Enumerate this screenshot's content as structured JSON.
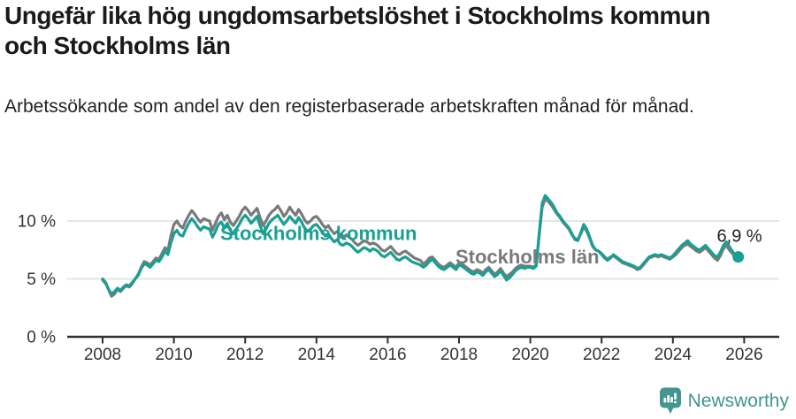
{
  "header": {
    "title": "Ungefär lika hög ungdomsarbetslöshet i Stockholms kommun och Stockholms län",
    "subtitle": "Arbetssökande som andel av den registerbaserade arbetskraften månad för månad."
  },
  "colors": {
    "kommun": "#18a092",
    "lan": "#7a7a7a",
    "axis": "#2f2f2f",
    "grid": "#dedede",
    "tick_text": "#333333",
    "value_text": "#222222",
    "logo": "#42968f"
  },
  "footer": {
    "brand": "Newsworthy",
    "logo_icon": "speech-bubble-bar-chart"
  },
  "chart_data": {
    "type": "line",
    "unit": "%",
    "frequency": "monthly",
    "start_month": "2008-01",
    "end_month": "2025-11",
    "ylim": [
      0,
      13
    ],
    "grid": "horizontal",
    "legend_position": "inline-labels",
    "yticks": [
      {
        "value": 0,
        "label": "0 %"
      },
      {
        "value": 5,
        "label": "5 %"
      },
      {
        "value": 10,
        "label": "10 %"
      }
    ],
    "xticks": [
      "2008",
      "2010",
      "2012",
      "2014",
      "2016",
      "2018",
      "2020",
      "2022",
      "2024",
      "2026"
    ],
    "series": [
      {
        "name": "Stockholms kommun",
        "color_key": "kommun",
        "values": [
          4.9,
          4.6,
          4.1,
          3.7,
          3.9,
          4.2,
          4.0,
          4.3,
          4.5,
          4.4,
          4.7,
          5.0,
          5.3,
          5.9,
          6.3,
          6.2,
          6.0,
          6.3,
          6.6,
          6.5,
          6.9,
          7.4,
          7.1,
          8.1,
          8.9,
          9.2,
          8.8,
          8.7,
          9.3,
          9.8,
          10.2,
          9.9,
          9.5,
          9.2,
          9.5,
          9.4,
          9.3,
          8.6,
          9.1,
          9.7,
          9.9,
          9.4,
          9.8,
          9.2,
          8.9,
          9.3,
          9.7,
          10.2,
          10.5,
          10.2,
          9.8,
          10.1,
          10.4,
          9.6,
          8.9,
          9.3,
          9.8,
          10.1,
          10.3,
          10.5,
          10.1,
          9.7,
          10.0,
          10.4,
          10.1,
          9.8,
          10.3,
          9.9,
          9.4,
          9.1,
          9.3,
          9.6,
          9.7,
          9.4,
          9.0,
          8.7,
          8.9,
          8.5,
          8.2,
          8.4,
          8.0,
          7.9,
          8.1,
          8.0,
          7.8,
          7.5,
          7.3,
          7.5,
          7.7,
          7.6,
          7.4,
          7.6,
          7.5,
          7.3,
          7.0,
          6.9,
          7.1,
          7.3,
          7.0,
          6.7,
          6.6,
          6.8,
          6.9,
          6.7,
          6.5,
          6.4,
          6.3,
          6.2,
          6.0,
          6.2,
          6.5,
          6.7,
          6.4,
          6.1,
          5.9,
          5.8,
          6.0,
          6.2,
          6.0,
          5.8,
          6.2,
          6.1,
          5.9,
          5.7,
          5.5,
          5.4,
          5.6,
          5.5,
          5.3,
          5.6,
          5.8,
          5.5,
          5.2,
          5.4,
          5.7,
          5.3,
          4.9,
          5.1,
          5.4,
          5.7,
          5.9,
          6.0,
          5.9,
          6.0,
          6.0,
          5.9,
          6.1,
          9.0,
          11.5,
          12.2,
          11.9,
          11.6,
          11.2,
          10.7,
          10.4,
          10.0,
          9.7,
          9.4,
          8.9,
          8.4,
          8.3,
          9.0,
          9.7,
          9.3,
          8.6,
          7.9,
          7.5,
          7.4,
          7.1,
          6.8,
          6.6,
          6.8,
          7.1,
          6.9,
          6.7,
          6.5,
          6.4,
          6.3,
          6.2,
          6.1,
          5.9,
          6.0,
          6.3,
          6.6,
          6.9,
          7.0,
          7.1,
          7.0,
          7.1,
          7.0,
          6.9,
          6.8,
          7.0,
          7.3,
          7.6,
          7.9,
          8.1,
          8.3,
          8.0,
          7.8,
          7.6,
          7.5,
          7.7,
          7.9,
          7.6,
          7.3,
          7.0,
          6.9,
          7.3,
          7.9,
          8.2,
          7.8,
          7.4,
          7.0,
          6.9
        ]
      },
      {
        "name": "Stockholms län",
        "color_key": "lan",
        "values": [
          5.0,
          4.7,
          4.1,
          3.5,
          3.7,
          4.1,
          3.9,
          4.2,
          4.4,
          4.3,
          4.6,
          5.0,
          5.4,
          6.0,
          6.5,
          6.4,
          6.2,
          6.5,
          6.8,
          6.7,
          7.2,
          7.7,
          7.5,
          8.7,
          9.7,
          10.0,
          9.6,
          9.4,
          10.0,
          10.5,
          10.9,
          10.6,
          10.2,
          9.9,
          10.2,
          10.1,
          10.0,
          9.2,
          9.8,
          10.4,
          10.7,
          10.1,
          10.5,
          9.9,
          9.6,
          10.0,
          10.4,
          10.9,
          11.2,
          10.9,
          10.5,
          10.8,
          11.1,
          10.3,
          9.6,
          10.0,
          10.5,
          10.8,
          11.0,
          11.3,
          10.9,
          10.4,
          10.7,
          11.2,
          10.8,
          10.5,
          11.0,
          10.6,
          10.1,
          9.8,
          10.0,
          10.3,
          10.4,
          10.1,
          9.7,
          9.4,
          9.6,
          9.2,
          8.9,
          9.1,
          8.7,
          8.5,
          8.8,
          8.6,
          8.4,
          8.1,
          7.9,
          8.1,
          8.3,
          8.2,
          8.0,
          8.1,
          8.0,
          7.8,
          7.5,
          7.4,
          7.6,
          7.8,
          7.5,
          7.2,
          7.1,
          7.3,
          7.4,
          7.2,
          7.0,
          6.8,
          6.7,
          6.6,
          6.3,
          6.5,
          6.8,
          6.9,
          6.6,
          6.3,
          6.1,
          6.0,
          6.2,
          6.4,
          6.2,
          6.0,
          6.4,
          6.3,
          6.1,
          5.9,
          5.7,
          5.6,
          5.8,
          5.7,
          5.5,
          5.8,
          6.0,
          5.7,
          5.4,
          5.6,
          5.9,
          5.5,
          5.2,
          5.4,
          5.6,
          5.9,
          6.1,
          6.2,
          6.1,
          6.1,
          6.1,
          6.0,
          6.2,
          8.8,
          11.2,
          11.9,
          11.7,
          11.4,
          11.0,
          10.6,
          10.3,
          9.9,
          9.6,
          9.3,
          8.8,
          8.5,
          8.4,
          8.9,
          9.5,
          9.1,
          8.5,
          7.8,
          7.5,
          7.4,
          7.2,
          6.9,
          6.7,
          6.9,
          7.0,
          6.8,
          6.6,
          6.4,
          6.3,
          6.2,
          6.1,
          6.0,
          5.8,
          5.9,
          6.2,
          6.5,
          6.8,
          6.9,
          7.0,
          6.9,
          7.0,
          6.9,
          6.8,
          6.7,
          6.9,
          7.1,
          7.4,
          7.7,
          7.9,
          8.0,
          7.8,
          7.6,
          7.4,
          7.3,
          7.5,
          7.7,
          7.4,
          7.1,
          6.8,
          6.6,
          7.0,
          7.6,
          7.9,
          7.5,
          7.2,
          6.9,
          7.0
        ]
      }
    ],
    "annotations": [
      {
        "text": "Stockholms kommun",
        "year": 2011.3,
        "value": 8.35,
        "color_key": "kommun"
      },
      {
        "text": "Stockholms län",
        "year": 2017.9,
        "value": 6.35,
        "color_key": "lan"
      }
    ],
    "end_label": {
      "text": "6,9 %",
      "series": "Stockholms kommun"
    }
  }
}
